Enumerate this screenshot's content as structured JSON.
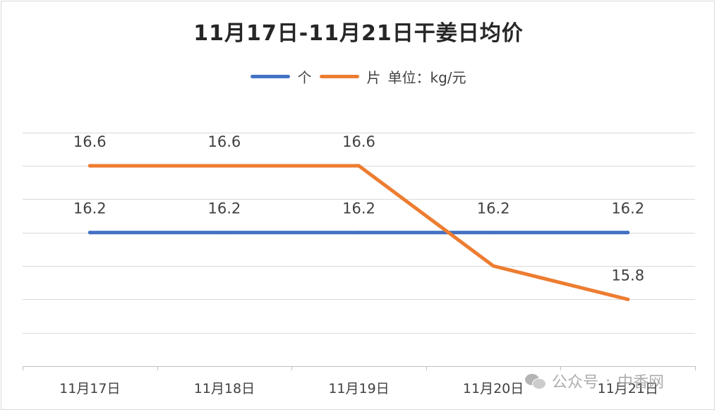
{
  "chart_data": {
    "type": "line",
    "title": "11月17日-11月21日干姜日均价",
    "unit_note": "单位：kg/元",
    "categories": [
      "11月17日",
      "11月18日",
      "11月19日",
      "11月20日",
      "11月21日"
    ],
    "series": [
      {
        "name": "个",
        "color": "#4472C4",
        "values": [
          16.2,
          16.2,
          16.2,
          16.2,
          16.2
        ],
        "labels": [
          "16.2",
          "16.2",
          "16.2",
          "16.2",
          "16.2"
        ]
      },
      {
        "name": "片",
        "color": "#ED7D31",
        "values": [
          16.6,
          16.6,
          16.6,
          16.0,
          15.8
        ],
        "labels": [
          "16.6",
          "16.6",
          "16.6",
          "",
          "15.8"
        ]
      }
    ],
    "ylim": [
      15.4,
      16.9
    ],
    "grid": true,
    "legend_position": "top"
  },
  "watermark": {
    "left": "公众号",
    "sep": "·",
    "right": "中香网",
    "icon": "wechat-icon"
  }
}
